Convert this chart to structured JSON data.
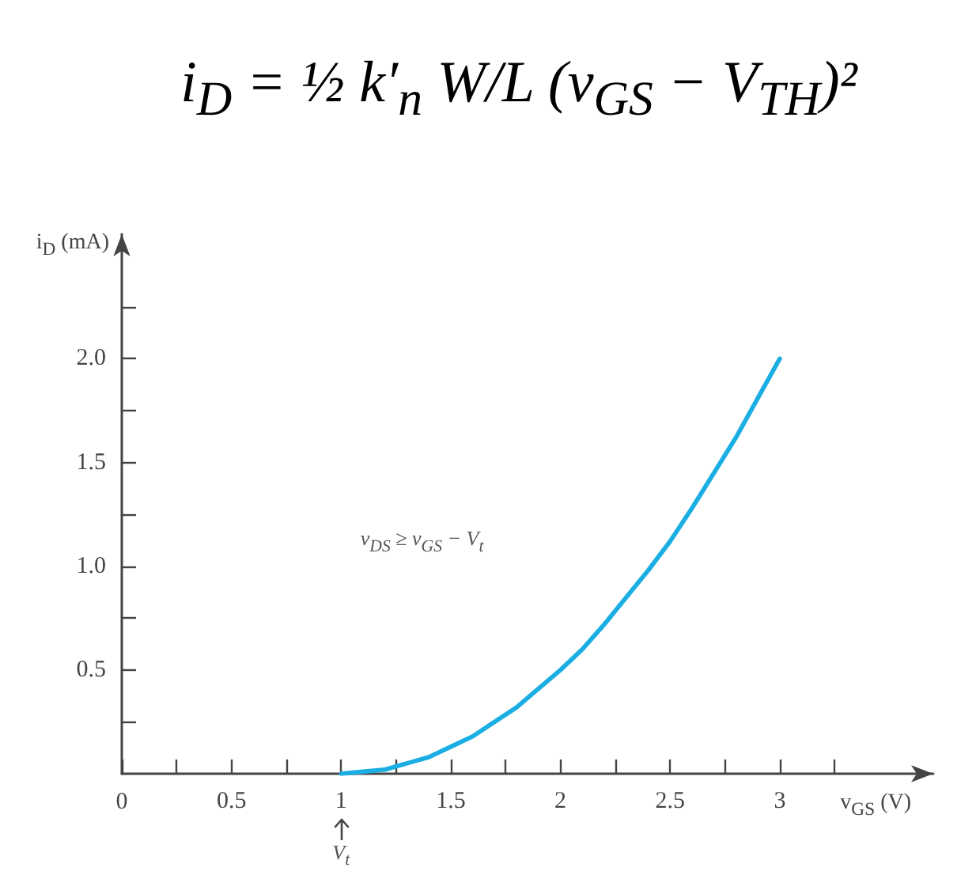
{
  "chart_data": {
    "type": "line",
    "title": "i$_{D}$ = ½ k′$_{n}$ W/L (v$_{GS}$ − V$_{TH}$)²",
    "xlabel": "v$_{GS}$ (V)",
    "ylabel": "i$_{D}$ (mA)",
    "x": [
      1,
      1.1,
      1.2,
      1.3,
      1.4,
      1.5,
      1.6,
      1.7,
      1.8,
      1.9,
      2.0,
      2.1,
      2.2,
      2.3,
      2.4,
      2.5,
      2.6,
      2.7,
      2.8,
      2.9,
      3.0
    ],
    "values": [
      0,
      0.01,
      0.02,
      0.05,
      0.08,
      0.13,
      0.18,
      0.25,
      0.32,
      0.41,
      0.5,
      0.6,
      0.72,
      0.85,
      0.98,
      1.12,
      1.28,
      1.45,
      1.62,
      1.81,
      2.0
    ],
    "color": "#1aaee3",
    "xlim": [
      0,
      3.7
    ],
    "ylim": [
      0,
      2.6
    ],
    "xticks": [
      0,
      {
        "value": 0.25,
        "label": null
      },
      0.5,
      {
        "value": 0.75,
        "label": null
      },
      1,
      {
        "value": 1.25,
        "label": null
      },
      1.5,
      {
        "value": 1.75,
        "label": null
      },
      2,
      {
        "value": 2.25,
        "label": null
      },
      2.5,
      {
        "value": 2.75,
        "label": null
      },
      3,
      {
        "value": 3.25,
        "label": null
      }
    ],
    "yticks": [
      {
        "value": 0.25,
        "label": null
      },
      0.5,
      {
        "value": 0.75,
        "label": null
      },
      {
        "value": 1,
        "label": "1.0"
      },
      {
        "value": 1.25,
        "label": null
      },
      1.5,
      {
        "value": 1.75,
        "label": null
      },
      {
        "value": 2,
        "label": "2.0"
      },
      {
        "value": 2.25,
        "label": null
      }
    ],
    "annotations": [
      "v$_{DS}$ ≥ v$_{GS}$ − V$_{t}$",
      {
        "text": "V$_{t}$",
        "x": 1
      }
    ]
  }
}
